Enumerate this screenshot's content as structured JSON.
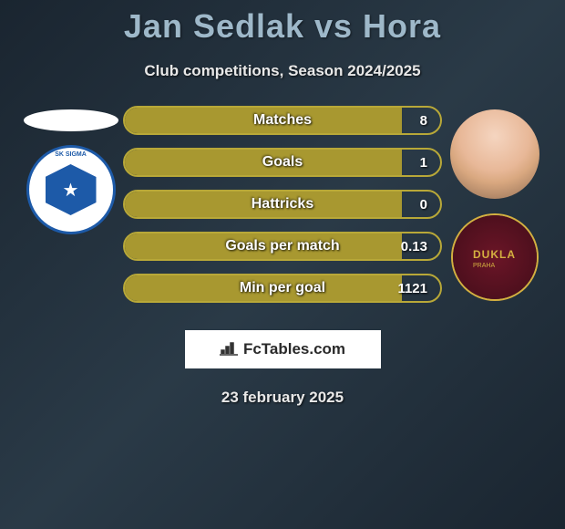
{
  "title": "Jan Sedlak vs Hora",
  "subtitle": "Club competitions, Season 2024/2025",
  "date": "23 february 2025",
  "watermark": "FcTables.com",
  "colors": {
    "title": "#9eb8c9",
    "pill_fill": "#a89830",
    "pill_border": "#b8a838",
    "text_light": "#e8e8e8"
  },
  "left": {
    "player_has_photo": false,
    "club_name": "SK Sigma Olomouc",
    "club_badge_type": "sigma"
  },
  "right": {
    "player_has_photo": true,
    "club_name": "Dukla Praha",
    "club_badge_type": "dukla"
  },
  "stats": [
    {
      "label": "Matches",
      "value": "8",
      "fill_pct": 88
    },
    {
      "label": "Goals",
      "value": "1",
      "fill_pct": 88
    },
    {
      "label": "Hattricks",
      "value": "0",
      "fill_pct": 88
    },
    {
      "label": "Goals per match",
      "value": "0.13",
      "fill_pct": 88
    },
    {
      "label": "Min per goal",
      "value": "1121",
      "fill_pct": 88
    }
  ]
}
